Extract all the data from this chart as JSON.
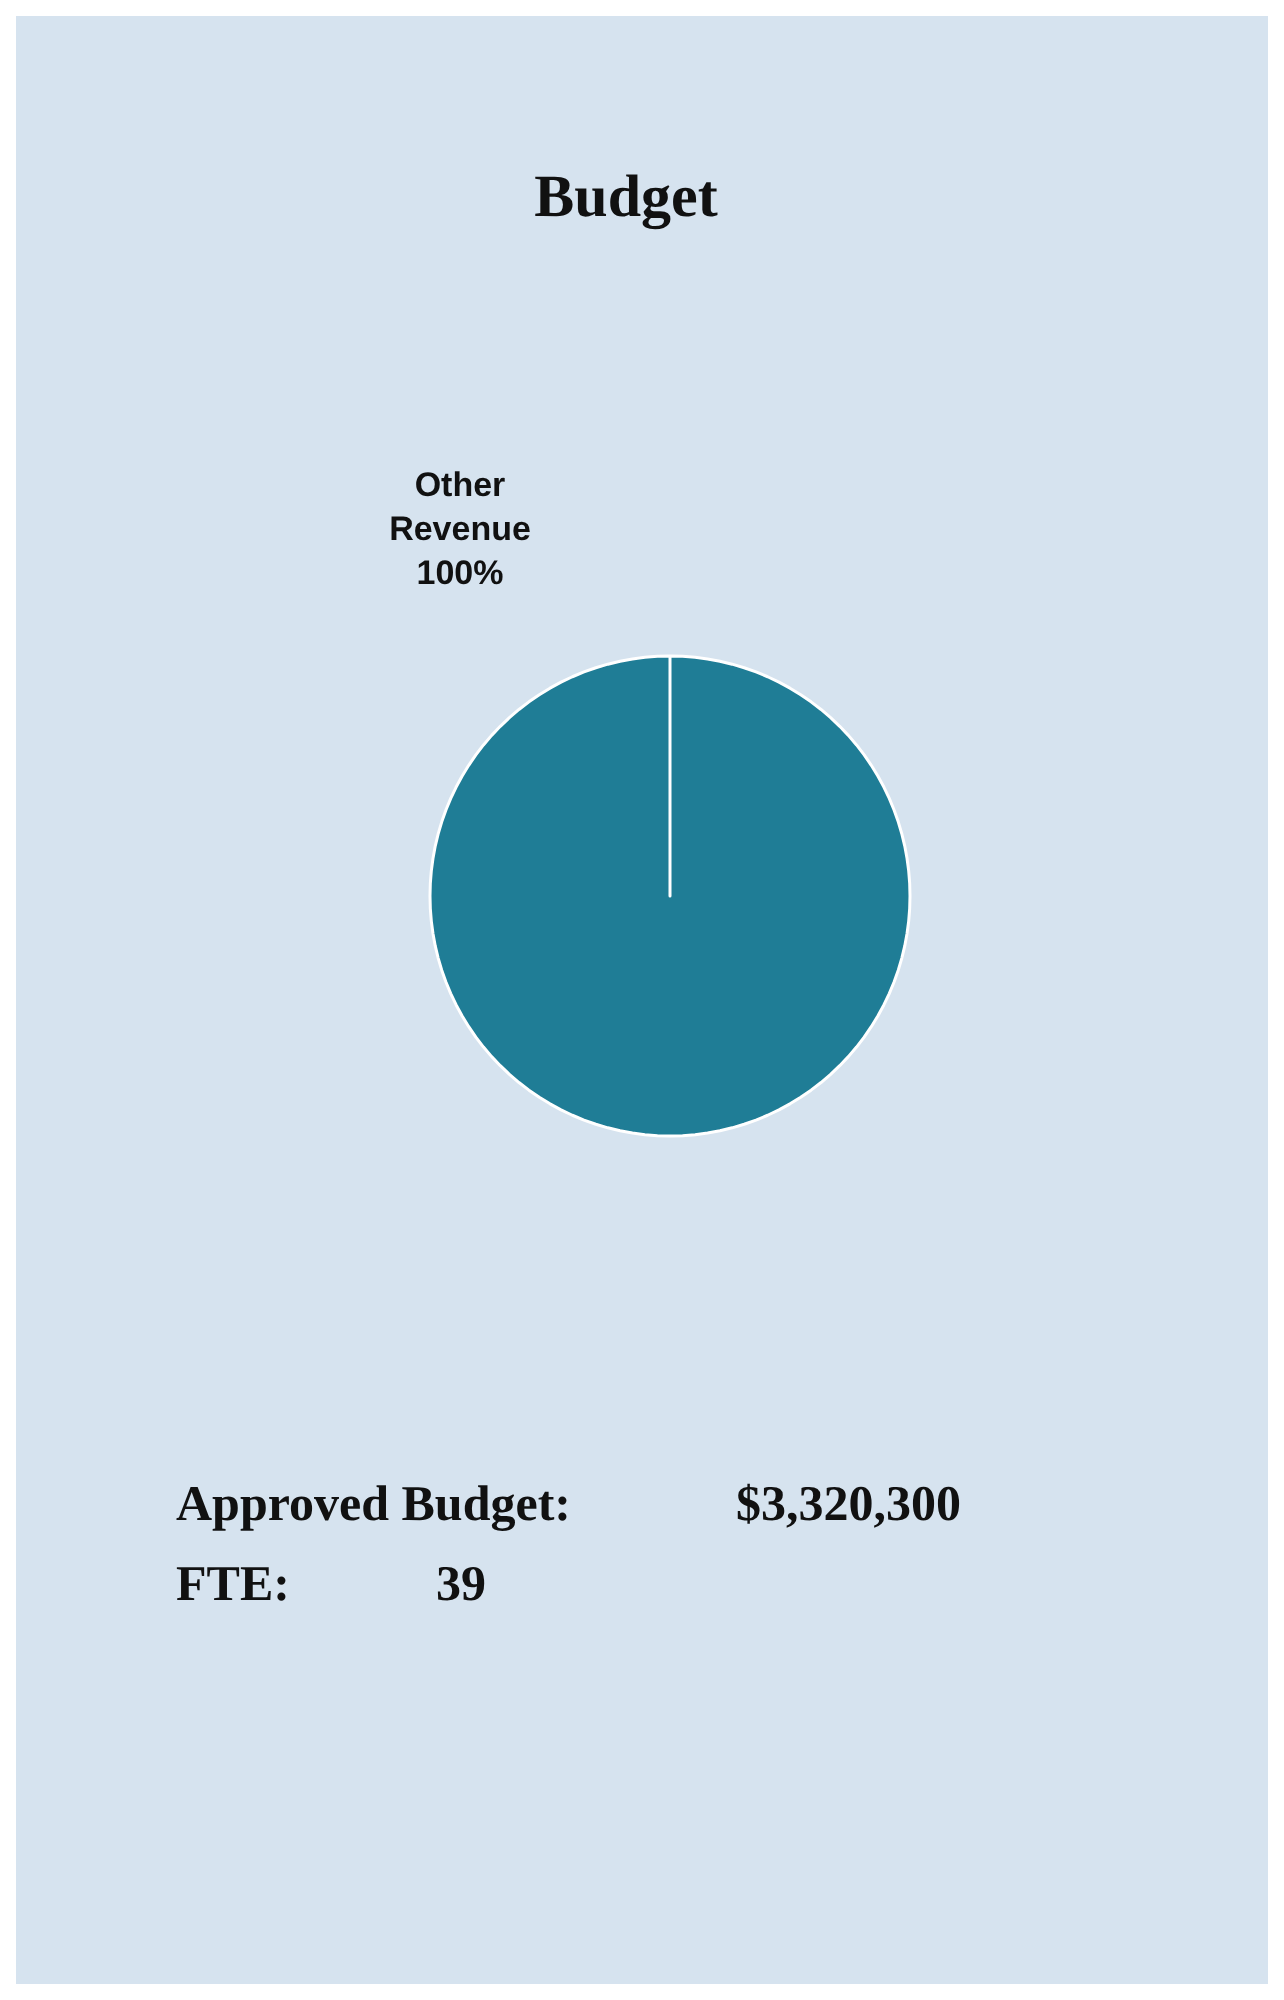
{
  "chart_data": {
    "type": "pie",
    "title": "Budget",
    "categories": [
      "Other Revenue"
    ],
    "values": [
      100
    ],
    "colors": [
      "#1f7d96"
    ],
    "value_labels": [
      "100%"
    ],
    "annotations": [
      "Approved Budget:",
      "$3,320,300",
      "FTE:",
      "39"
    ]
  }
}
